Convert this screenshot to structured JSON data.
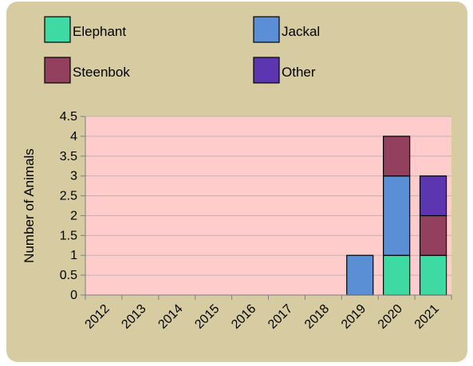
{
  "chart_data": {
    "type": "bar",
    "stacked": true,
    "categories": [
      "2012",
      "2013",
      "2014",
      "2015",
      "2016",
      "2017",
      "2018",
      "2019",
      "2020",
      "2021"
    ],
    "series": [
      {
        "name": "Elephant",
        "color": "#3fd9a3",
        "values": [
          0,
          0,
          0,
          0,
          0,
          0,
          0,
          0,
          1,
          1
        ]
      },
      {
        "name": "Jackal",
        "color": "#5a8fd6",
        "values": [
          0,
          0,
          0,
          0,
          0,
          0,
          0,
          1,
          2,
          0
        ]
      },
      {
        "name": "Steenbok",
        "color": "#93405f",
        "values": [
          0,
          0,
          0,
          0,
          0,
          0,
          0,
          0,
          1,
          1
        ]
      },
      {
        "name": "Other",
        "color": "#5b36b0",
        "values": [
          0,
          0,
          0,
          0,
          0,
          0,
          0,
          0,
          0,
          1
        ]
      }
    ],
    "title": "",
    "xlabel": "",
    "ylabel": "Number of Animals",
    "ylim": [
      0,
      4.5
    ],
    "yticks": [
      "0",
      "0.5",
      "1",
      "1.5",
      "2",
      "2.5",
      "3",
      "3.5",
      "4",
      "4.5"
    ],
    "grid": true,
    "legend": "top",
    "plot_background": "#ffcccc",
    "frame_background": "#d6cba1"
  }
}
